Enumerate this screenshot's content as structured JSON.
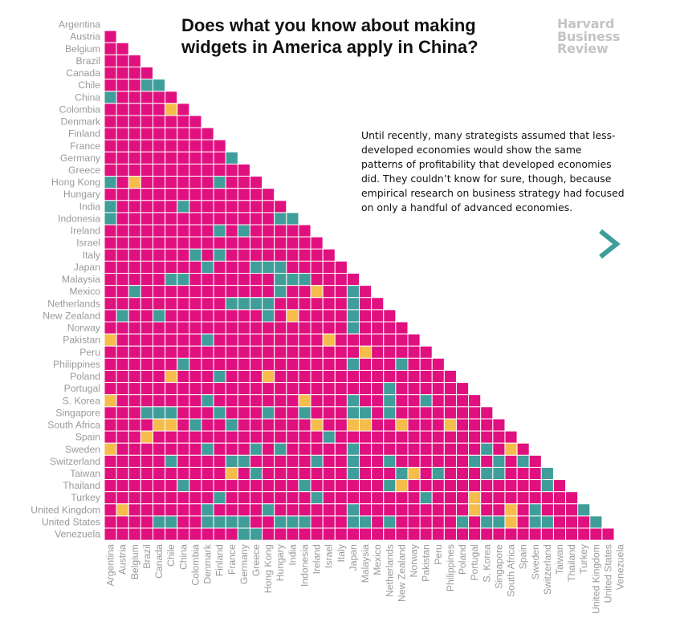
{
  "title": "Does what you know about making widgets in America apply in China?",
  "logo": {
    "line1": "Harvard",
    "line2": "Business",
    "line3": "Review"
  },
  "description": "Until recently, many strategists assumed that less-developed economies would show the same patterns of profitability that developed economies did. They couldn’t know for sure, though, because empirical research on business strategy had focused on only a handful of advanced economies.",
  "next_icon": "chevron-right-icon",
  "colors": {
    "dissimilar": "#e0117f",
    "similar": "#3f9e9a",
    "intermediate": "#f6bd4d",
    "label": "#9a9a9a",
    "grid": "#ffffff"
  },
  "chart_data": {
    "type": "heatmap",
    "layout": "lower-triangular matrix",
    "countries": [
      "Argentina",
      "Austria",
      "Belgium",
      "Brazil",
      "Canada",
      "Chile",
      "China",
      "Colombia",
      "Denmark",
      "Finland",
      "France",
      "Germany",
      "Greece",
      "Hong Kong",
      "Hungary",
      "India",
      "Indonesia",
      "Ireland",
      "Israel",
      "Italy",
      "Japan",
      "Malaysia",
      "Mexico",
      "Netherlands",
      "New Zealand",
      "Norway",
      "Pakistan",
      "Peru",
      "Philippines",
      "Poland",
      "Portugal",
      "S. Korea",
      "Singapore",
      "South Africa",
      "Spain",
      "Sweden",
      "Switzerland",
      "Taiwan",
      "Thailand",
      "Turkey",
      "United Kingdom",
      "United States",
      "Venezuela"
    ],
    "default_category": "dissimilar",
    "categories": [
      "dissimilar",
      "similar",
      "intermediate"
    ],
    "cells": [
      {
        "row": "Chile",
        "col": "Canada",
        "cat": "similar"
      },
      {
        "row": "Chile",
        "col": "Brazil",
        "cat": "similar"
      },
      {
        "row": "China",
        "col": "Argentina",
        "cat": "similar"
      },
      {
        "row": "Colombia",
        "col": "Chile",
        "cat": "intermediate"
      },
      {
        "row": "Germany",
        "col": "France",
        "cat": "similar"
      },
      {
        "row": "Hong Kong",
        "col": "Argentina",
        "cat": "similar"
      },
      {
        "row": "Hong Kong",
        "col": "Belgium",
        "cat": "intermediate"
      },
      {
        "row": "Hong Kong",
        "col": "Finland",
        "cat": "similar"
      },
      {
        "row": "India",
        "col": "Argentina",
        "cat": "similar"
      },
      {
        "row": "India",
        "col": "China",
        "cat": "similar"
      },
      {
        "row": "Indonesia",
        "col": "Argentina",
        "cat": "similar"
      },
      {
        "row": "Indonesia",
        "col": "Hungary",
        "cat": "similar"
      },
      {
        "row": "Indonesia",
        "col": "India",
        "cat": "similar"
      },
      {
        "row": "Ireland",
        "col": "Finland",
        "cat": "similar"
      },
      {
        "row": "Ireland",
        "col": "Germany",
        "cat": "similar"
      },
      {
        "row": "Italy",
        "col": "Colombia",
        "cat": "similar"
      },
      {
        "row": "Italy",
        "col": "Finland",
        "cat": "similar"
      },
      {
        "row": "Japan",
        "col": "Denmark",
        "cat": "similar"
      },
      {
        "row": "Japan",
        "col": "Greece",
        "cat": "similar"
      },
      {
        "row": "Japan",
        "col": "Hong Kong",
        "cat": "similar"
      },
      {
        "row": "Japan",
        "col": "Hungary",
        "cat": "similar"
      },
      {
        "row": "Malaysia",
        "col": "Chile",
        "cat": "similar"
      },
      {
        "row": "Malaysia",
        "col": "China",
        "cat": "similar"
      },
      {
        "row": "Malaysia",
        "col": "Hungary",
        "cat": "similar"
      },
      {
        "row": "Malaysia",
        "col": "India",
        "cat": "similar"
      },
      {
        "row": "Malaysia",
        "col": "Indonesia",
        "cat": "similar"
      },
      {
        "row": "Mexico",
        "col": "Belgium",
        "cat": "similar"
      },
      {
        "row": "Mexico",
        "col": "Hungary",
        "cat": "similar"
      },
      {
        "row": "Mexico",
        "col": "Ireland",
        "cat": "intermediate"
      },
      {
        "row": "Mexico",
        "col": "Japan",
        "cat": "similar"
      },
      {
        "row": "Netherlands",
        "col": "France",
        "cat": "similar"
      },
      {
        "row": "Netherlands",
        "col": "Germany",
        "cat": "similar"
      },
      {
        "row": "Netherlands",
        "col": "Greece",
        "cat": "similar"
      },
      {
        "row": "Netherlands",
        "col": "Hong Kong",
        "cat": "similar"
      },
      {
        "row": "Netherlands",
        "col": "Japan",
        "cat": "similar"
      },
      {
        "row": "New Zealand",
        "col": "Austria",
        "cat": "similar"
      },
      {
        "row": "New Zealand",
        "col": "Canada",
        "cat": "similar"
      },
      {
        "row": "New Zealand",
        "col": "Hong Kong",
        "cat": "similar"
      },
      {
        "row": "New Zealand",
        "col": "India",
        "cat": "intermediate"
      },
      {
        "row": "New Zealand",
        "col": "Japan",
        "cat": "similar"
      },
      {
        "row": "Norway",
        "col": "Japan",
        "cat": "similar"
      },
      {
        "row": "Pakistan",
        "col": "Argentina",
        "cat": "intermediate"
      },
      {
        "row": "Pakistan",
        "col": "Denmark",
        "cat": "similar"
      },
      {
        "row": "Pakistan",
        "col": "Israel",
        "cat": "intermediate"
      },
      {
        "row": "Peru",
        "col": "Malaysia",
        "cat": "intermediate"
      },
      {
        "row": "Philippines",
        "col": "China",
        "cat": "similar"
      },
      {
        "row": "Philippines",
        "col": "Japan",
        "cat": "similar"
      },
      {
        "row": "Philippines",
        "col": "New Zealand",
        "cat": "similar"
      },
      {
        "row": "Poland",
        "col": "Chile",
        "cat": "intermediate"
      },
      {
        "row": "Poland",
        "col": "Finland",
        "cat": "similar"
      },
      {
        "row": "Poland",
        "col": "Hong Kong",
        "cat": "intermediate"
      },
      {
        "row": "Portugal",
        "col": "Netherlands",
        "cat": "similar"
      },
      {
        "row": "S. Korea",
        "col": "Argentina",
        "cat": "intermediate"
      },
      {
        "row": "S. Korea",
        "col": "Denmark",
        "cat": "similar"
      },
      {
        "row": "S. Korea",
        "col": "Indonesia",
        "cat": "intermediate"
      },
      {
        "row": "S. Korea",
        "col": "Japan",
        "cat": "similar"
      },
      {
        "row": "S. Korea",
        "col": "Netherlands",
        "cat": "similar"
      },
      {
        "row": "S. Korea",
        "col": "Pakistan",
        "cat": "similar"
      },
      {
        "row": "Singapore",
        "col": "Brazil",
        "cat": "similar"
      },
      {
        "row": "Singapore",
        "col": "Canada",
        "cat": "similar"
      },
      {
        "row": "Singapore",
        "col": "Chile",
        "cat": "similar"
      },
      {
        "row": "Singapore",
        "col": "Finland",
        "cat": "similar"
      },
      {
        "row": "Singapore",
        "col": "Hong Kong",
        "cat": "similar"
      },
      {
        "row": "Singapore",
        "col": "Indonesia",
        "cat": "similar"
      },
      {
        "row": "Singapore",
        "col": "Japan",
        "cat": "similar"
      },
      {
        "row": "Singapore",
        "col": "Malaysia",
        "cat": "similar"
      },
      {
        "row": "Singapore",
        "col": "Netherlands",
        "cat": "similar"
      },
      {
        "row": "South Africa",
        "col": "Canada",
        "cat": "intermediate"
      },
      {
        "row": "South Africa",
        "col": "Chile",
        "cat": "intermediate"
      },
      {
        "row": "South Africa",
        "col": "Colombia",
        "cat": "similar"
      },
      {
        "row": "South Africa",
        "col": "France",
        "cat": "similar"
      },
      {
        "row": "South Africa",
        "col": "Ireland",
        "cat": "intermediate"
      },
      {
        "row": "South Africa",
        "col": "Japan",
        "cat": "intermediate"
      },
      {
        "row": "South Africa",
        "col": "Malaysia",
        "cat": "intermediate"
      },
      {
        "row": "South Africa",
        "col": "New Zealand",
        "cat": "intermediate"
      },
      {
        "row": "South Africa",
        "col": "Philippines",
        "cat": "intermediate"
      },
      {
        "row": "Spain",
        "col": "Brazil",
        "cat": "intermediate"
      },
      {
        "row": "Spain",
        "col": "Israel",
        "cat": "similar"
      },
      {
        "row": "Sweden",
        "col": "Argentina",
        "cat": "intermediate"
      },
      {
        "row": "Sweden",
        "col": "Denmark",
        "cat": "similar"
      },
      {
        "row": "Sweden",
        "col": "Greece",
        "cat": "similar"
      },
      {
        "row": "Sweden",
        "col": "Hungary",
        "cat": "similar"
      },
      {
        "row": "Sweden",
        "col": "Japan",
        "cat": "similar"
      },
      {
        "row": "Sweden",
        "col": "S. Korea",
        "cat": "similar"
      },
      {
        "row": "Sweden",
        "col": "South Africa",
        "cat": "intermediate"
      },
      {
        "row": "Switzerland",
        "col": "Chile",
        "cat": "similar"
      },
      {
        "row": "Switzerland",
        "col": "France",
        "cat": "similar"
      },
      {
        "row": "Switzerland",
        "col": "Germany",
        "cat": "similar"
      },
      {
        "row": "Switzerland",
        "col": "Ireland",
        "cat": "similar"
      },
      {
        "row": "Switzerland",
        "col": "Japan",
        "cat": "similar"
      },
      {
        "row": "Switzerland",
        "col": "Netherlands",
        "cat": "similar"
      },
      {
        "row": "Switzerland",
        "col": "Portugal",
        "cat": "similar"
      },
      {
        "row": "Switzerland",
        "col": "Singapore",
        "cat": "similar"
      },
      {
        "row": "Switzerland",
        "col": "Spain",
        "cat": "similar"
      },
      {
        "row": "Taiwan",
        "col": "France",
        "cat": "intermediate"
      },
      {
        "row": "Taiwan",
        "col": "Greece",
        "cat": "similar"
      },
      {
        "row": "Taiwan",
        "col": "Japan",
        "cat": "similar"
      },
      {
        "row": "Taiwan",
        "col": "New Zealand",
        "cat": "similar"
      },
      {
        "row": "Taiwan",
        "col": "Norway",
        "cat": "intermediate"
      },
      {
        "row": "Taiwan",
        "col": "Peru",
        "cat": "similar"
      },
      {
        "row": "Taiwan",
        "col": "S. Korea",
        "cat": "similar"
      },
      {
        "row": "Taiwan",
        "col": "Singapore",
        "cat": "similar"
      },
      {
        "row": "Taiwan",
        "col": "Switzerland",
        "cat": "similar"
      },
      {
        "row": "Thailand",
        "col": "China",
        "cat": "similar"
      },
      {
        "row": "Thailand",
        "col": "Indonesia",
        "cat": "similar"
      },
      {
        "row": "Thailand",
        "col": "Netherlands",
        "cat": "similar"
      },
      {
        "row": "Thailand",
        "col": "New Zealand",
        "cat": "intermediate"
      },
      {
        "row": "Thailand",
        "col": "Switzerland",
        "cat": "similar"
      },
      {
        "row": "Turkey",
        "col": "Finland",
        "cat": "similar"
      },
      {
        "row": "Turkey",
        "col": "Ireland",
        "cat": "similar"
      },
      {
        "row": "Turkey",
        "col": "Pakistan",
        "cat": "similar"
      },
      {
        "row": "Turkey",
        "col": "Portugal",
        "cat": "intermediate"
      },
      {
        "row": "United Kingdom",
        "col": "Austria",
        "cat": "intermediate"
      },
      {
        "row": "United Kingdom",
        "col": "Denmark",
        "cat": "similar"
      },
      {
        "row": "United Kingdom",
        "col": "Hong Kong",
        "cat": "similar"
      },
      {
        "row": "United Kingdom",
        "col": "Japan",
        "cat": "similar"
      },
      {
        "row": "United Kingdom",
        "col": "Portugal",
        "cat": "intermediate"
      },
      {
        "row": "United Kingdom",
        "col": "South Africa",
        "cat": "intermediate"
      },
      {
        "row": "United Kingdom",
        "col": "Sweden",
        "cat": "similar"
      },
      {
        "row": "United Kingdom",
        "col": "Turkey",
        "cat": "similar"
      },
      {
        "row": "United States",
        "col": "Canada",
        "cat": "similar"
      },
      {
        "row": "United States",
        "col": "Chile",
        "cat": "similar"
      },
      {
        "row": "United States",
        "col": "Denmark",
        "cat": "similar"
      },
      {
        "row": "United States",
        "col": "Finland",
        "cat": "similar"
      },
      {
        "row": "United States",
        "col": "France",
        "cat": "similar"
      },
      {
        "row": "United States",
        "col": "Germany",
        "cat": "similar"
      },
      {
        "row": "United States",
        "col": "Hungary",
        "cat": "similar"
      },
      {
        "row": "United States",
        "col": "India",
        "cat": "similar"
      },
      {
        "row": "United States",
        "col": "Indonesia",
        "cat": "similar"
      },
      {
        "row": "United States",
        "col": "Japan",
        "cat": "similar"
      },
      {
        "row": "United States",
        "col": "Malaysia",
        "cat": "similar"
      },
      {
        "row": "United States",
        "col": "Netherlands",
        "cat": "similar"
      },
      {
        "row": "United States",
        "col": "Poland",
        "cat": "similar"
      },
      {
        "row": "United States",
        "col": "S. Korea",
        "cat": "similar"
      },
      {
        "row": "United States",
        "col": "Singapore",
        "cat": "similar"
      },
      {
        "row": "United States",
        "col": "South Africa",
        "cat": "intermediate"
      },
      {
        "row": "United States",
        "col": "Sweden",
        "cat": "similar"
      },
      {
        "row": "United States",
        "col": "Switzerland",
        "cat": "similar"
      },
      {
        "row": "United States",
        "col": "United Kingdom",
        "cat": "similar"
      },
      {
        "row": "Venezuela",
        "col": "Germany",
        "cat": "similar"
      },
      {
        "row": "Venezuela",
        "col": "Greece",
        "cat": "similar"
      }
    ]
  }
}
